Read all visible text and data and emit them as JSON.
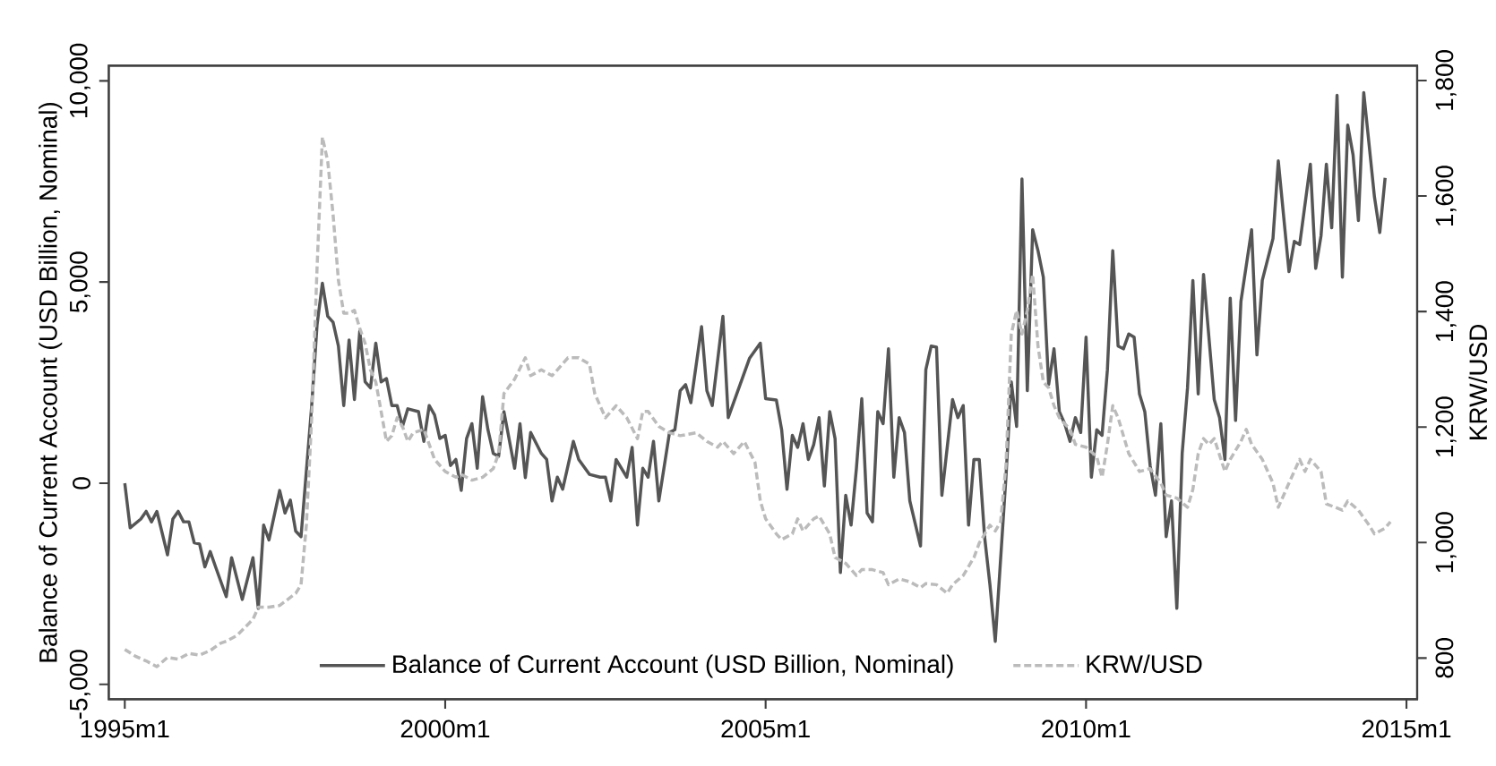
{
  "chart_data": {
    "type": "line",
    "ylabel": "Balance of Current Account (USD Billion, Nominal)",
    "y2label": "KRW/USD",
    "xlim": [
      "1994-10",
      "2015-03"
    ],
    "xticks": [
      {
        "value": "1995-01",
        "label": "1995m1"
      },
      {
        "value": "2000-01",
        "label": "2000m1"
      },
      {
        "value": "2005-01",
        "label": "2005m1"
      },
      {
        "value": "2010-01",
        "label": "2010m1"
      },
      {
        "value": "2015-01",
        "label": "2015m1"
      }
    ],
    "ylim": [
      -5369,
      10378
    ],
    "yticks": [
      {
        "value": -5000,
        "label": "-5,000"
      },
      0,
      {
        "value": 5000,
        "label": "5,000"
      },
      {
        "value": 10000,
        "label": "10,000"
      }
    ],
    "y2lim": [
      728.7,
      1825.7
    ],
    "y2ticks": [
      800,
      {
        "value": 1000,
        "label": "1,000"
      },
      {
        "value": 1200,
        "label": "1,200"
      },
      {
        "value": 1400,
        "label": "1,400"
      },
      {
        "value": 1600,
        "label": "1,600"
      },
      {
        "value": 1800,
        "label": "1,800"
      }
    ],
    "legend": "bottom",
    "marker": "none",
    "series": [
      {
        "name": "Balance of Current Account (USD Billion, Nominal)",
        "color": "#555555",
        "line_style": "solid",
        "x": [
          "1995-01",
          "1995-02",
          "1995-04",
          "1995-05",
          "1995-06",
          "1995-07",
          "1995-09",
          "1995-10",
          "1995-11",
          "1995-12",
          "1996-01",
          "1996-02",
          "1996-03",
          "1996-04",
          "1996-05",
          "1996-06",
          "1996-08",
          "1996-09",
          "1996-11",
          "1997-01",
          "1997-02",
          "1997-03",
          "1997-04",
          "1997-06",
          "1997-07",
          "1997-08",
          "1997-09",
          "1997-10",
          "1997-12",
          "1998-01",
          "1998-02",
          "1998-03",
          "1998-04",
          "1998-05",
          "1998-06",
          "1998-07",
          "1998-08",
          "1998-09",
          "1998-10",
          "1998-11",
          "1998-12",
          "1999-01",
          "1999-02",
          "1999-03",
          "1999-04",
          "1999-05",
          "1999-06",
          "1999-08",
          "1999-09",
          "1999-10",
          "1999-11",
          "1999-12",
          "2000-01",
          "2000-02",
          "2000-03",
          "2000-04",
          "2000-05",
          "2000-06",
          "2000-07",
          "2000-08",
          "2000-09",
          "2000-10",
          "2000-11",
          "2000-12",
          "2001-02",
          "2001-03",
          "2001-04",
          "2001-05",
          "2001-07",
          "2001-08",
          "2001-09",
          "2001-10",
          "2001-11",
          "2001-12",
          "2002-01",
          "2002-02",
          "2002-04",
          "2002-06",
          "2002-07",
          "2002-08",
          "2002-09",
          "2002-11",
          "2002-12",
          "2003-01",
          "2003-02",
          "2003-03",
          "2003-04",
          "2003-05",
          "2003-07",
          "2003-08",
          "2003-09",
          "2003-10",
          "2003-11",
          "2004-01",
          "2004-02",
          "2004-03",
          "2004-05",
          "2004-06",
          "2004-10",
          "2004-12",
          "2005-01",
          "2005-03",
          "2005-04",
          "2005-05",
          "2005-06",
          "2005-07",
          "2005-08",
          "2005-09",
          "2005-10",
          "2005-11",
          "2005-12",
          "2006-01",
          "2006-02",
          "2006-03",
          "2006-04",
          "2006-05",
          "2006-06",
          "2006-07",
          "2006-08",
          "2006-09",
          "2006-10",
          "2006-11",
          "2006-12",
          "2007-01",
          "2007-02",
          "2007-03",
          "2007-04",
          "2007-06",
          "2007-07",
          "2007-08",
          "2007-09",
          "2007-10",
          "2007-12",
          "2008-01",
          "2008-02",
          "2008-03",
          "2008-04",
          "2008-05",
          "2008-06",
          "2008-07",
          "2008-08",
          "2008-10",
          "2008-11",
          "2008-12",
          "2009-01",
          "2009-02",
          "2009-03",
          "2009-04",
          "2009-05",
          "2009-06",
          "2009-07",
          "2009-08",
          "2009-09",
          "2009-10",
          "2009-11",
          "2009-12",
          "2010-01",
          "2010-02",
          "2010-03",
          "2010-04",
          "2010-05",
          "2010-06",
          "2010-07",
          "2010-08",
          "2010-09",
          "2010-10",
          "2010-11",
          "2010-12",
          "2011-01",
          "2011-02",
          "2011-03",
          "2011-04",
          "2011-05",
          "2011-06",
          "2011-07",
          "2011-08",
          "2011-09",
          "2011-10",
          "2011-11",
          "2012-01",
          "2012-02",
          "2012-03",
          "2012-04",
          "2012-05",
          "2012-06",
          "2012-08",
          "2012-09",
          "2012-10",
          "2012-12",
          "2013-01",
          "2013-03",
          "2013-04",
          "2013-05",
          "2013-07",
          "2013-08",
          "2013-09",
          "2013-10",
          "2013-11",
          "2013-12",
          "2014-01",
          "2014-02",
          "2014-03",
          "2014-04",
          "2014-05",
          "2014-07",
          "2014-08",
          "2014-09"
        ],
        "values": [
          0,
          -1110,
          -890,
          -700,
          -960,
          -700,
          -1780,
          -890,
          -700,
          -960,
          -960,
          -1480,
          -1510,
          -2080,
          -1700,
          -2080,
          -2820,
          -1850,
          -2890,
          -1850,
          -3110,
          -1040,
          -1410,
          -180,
          -740,
          -420,
          -1190,
          -1330,
          1930,
          3930,
          4970,
          4150,
          4000,
          3410,
          1930,
          3560,
          2080,
          3780,
          2520,
          2370,
          3480,
          2520,
          2600,
          1930,
          1930,
          1410,
          1850,
          1780,
          1040,
          1930,
          1700,
          1110,
          1190,
          440,
          590,
          -180,
          1110,
          1480,
          370,
          2150,
          1330,
          740,
          670,
          1780,
          370,
          1480,
          140,
          1260,
          740,
          590,
          -440,
          150,
          -150,
          440,
          1040,
          590,
          220,
          150,
          150,
          -440,
          590,
          150,
          890,
          -1040,
          370,
          150,
          1040,
          -440,
          1260,
          1330,
          2300,
          2450,
          2000,
          3890,
          2300,
          1930,
          4150,
          1630,
          3110,
          3480,
          2100,
          2070,
          1330,
          -150,
          1190,
          890,
          1480,
          590,
          960,
          1630,
          -70,
          1780,
          1110,
          -2220,
          -300,
          -1040,
          370,
          2100,
          -740,
          -960,
          1780,
          1480,
          3340,
          150,
          1630,
          1260,
          -440,
          -1560,
          2820,
          3410,
          3380,
          -300,
          2080,
          1630,
          1930,
          -1040,
          590,
          590,
          -1330,
          -2520,
          -3930,
          150,
          2520,
          1410,
          7560,
          2300,
          6300,
          5780,
          5120,
          2450,
          3340,
          1780,
          1480,
          1040,
          1630,
          1260,
          3630,
          150,
          1330,
          1190,
          2820,
          5780,
          3410,
          3340,
          3710,
          3630,
          2220,
          1780,
          440,
          -300,
          1480,
          -1330,
          -440,
          -3110,
          740,
          2370,
          5040,
          2220,
          5190,
          2080,
          1630,
          590,
          4600,
          1560,
          4520,
          6300,
          3190,
          5040,
          6080,
          8010,
          5260,
          6010,
          5930,
          7930,
          5340,
          6150,
          7930,
          6350,
          9640,
          5120,
          8900,
          8160,
          6530,
          9710,
          7120,
          6230,
          7590
        ]
      },
      {
        "name": "KRW/USD",
        "color": "#bbbbbb",
        "line_style": "dashed",
        "axis": "y2",
        "x": [
          "1995-01",
          "1995-03",
          "1995-05",
          "1995-07",
          "1995-09",
          "1995-11",
          "1996-01",
          "1996-03",
          "1996-05",
          "1996-07",
          "1996-08",
          "1996-10",
          "1997-01",
          "1997-02",
          "1997-04",
          "1997-06",
          "1997-09",
          "1997-10",
          "1997-11",
          "1997-12",
          "1998-01",
          "1998-02",
          "1998-03",
          "1998-04",
          "1998-05",
          "1998-06",
          "1998-07",
          "1998-08",
          "1998-09",
          "1998-10",
          "1998-11",
          "1998-12",
          "1999-01",
          "1999-02",
          "1999-03",
          "1999-04",
          "1999-05",
          "1999-06",
          "1999-07",
          "1999-09",
          "1999-10",
          "1999-11",
          "2000-01",
          "2000-03",
          "2000-04",
          "2000-06",
          "2000-08",
          "2000-10",
          "2000-11",
          "2000-12",
          "2001-02",
          "2001-04",
          "2001-05",
          "2001-07",
          "2001-09",
          "2001-10",
          "2001-12",
          "2002-02",
          "2002-04",
          "2002-05",
          "2002-07",
          "2002-09",
          "2002-11",
          "2003-01",
          "2003-02",
          "2003-03",
          "2003-05",
          "2003-07",
          "2003-09",
          "2003-12",
          "2004-02",
          "2004-04",
          "2004-05",
          "2004-07",
          "2004-09",
          "2004-11",
          "2004-12",
          "2005-01",
          "2005-03",
          "2005-04",
          "2005-06",
          "2005-07",
          "2005-08",
          "2005-10",
          "2005-11",
          "2006-01",
          "2006-02",
          "2006-04",
          "2006-06",
          "2006-07",
          "2006-09",
          "2006-11",
          "2006-12",
          "2007-02",
          "2007-04",
          "2007-06",
          "2007-07",
          "2007-09",
          "2007-11",
          "2007-12",
          "2008-02",
          "2008-04",
          "2008-05",
          "2008-07",
          "2008-08",
          "2008-09",
          "2008-10",
          "2008-11",
          "2008-12",
          "2009-01",
          "2009-02",
          "2009-03",
          "2009-04",
          "2009-05",
          "2009-06",
          "2009-07",
          "2009-08",
          "2009-10",
          "2009-11",
          "2010-01",
          "2010-03",
          "2010-04",
          "2010-05",
          "2010-06",
          "2010-07",
          "2010-08",
          "2010-09",
          "2010-11",
          "2011-01",
          "2011-03",
          "2011-04",
          "2011-06",
          "2011-08",
          "2011-09",
          "2011-10",
          "2011-11",
          "2011-12",
          "2012-01",
          "2012-03",
          "2012-04",
          "2012-06",
          "2012-07",
          "2012-08",
          "2012-10",
          "2012-12",
          "2013-01",
          "2013-03",
          "2013-05",
          "2013-06",
          "2013-07",
          "2013-09",
          "2013-10",
          "2014-01",
          "2014-02",
          "2014-04",
          "2014-06",
          "2014-07",
          "2014-09",
          "2014-10"
        ],
        "values": [
          815,
          803,
          795,
          785,
          801,
          798,
          808,
          805,
          813,
          826,
          829,
          839,
          867,
          888,
          888,
          891,
          912,
          927,
          1030,
          1216,
          1475,
          1702,
          1660,
          1568,
          1454,
          1397,
          1397,
          1402,
          1371,
          1345,
          1299,
          1278,
          1227,
          1175,
          1185,
          1216,
          1201,
          1175,
          1190,
          1196,
          1170,
          1144,
          1123,
          1113,
          1118,
          1108,
          1113,
          1128,
          1154,
          1258,
          1283,
          1320,
          1289,
          1299,
          1289,
          1299,
          1320,
          1320,
          1309,
          1258,
          1216,
          1237,
          1216,
          1180,
          1227,
          1227,
          1201,
          1190,
          1185,
          1190,
          1175,
          1165,
          1175,
          1154,
          1175,
          1139,
          1072,
          1041,
          1015,
          1005,
          1015,
          1041,
          1020,
          1041,
          1046,
          1015,
          974,
          964,
          943,
          953,
          953,
          948,
          927,
          937,
          932,
          922,
          929,
          927,
          912,
          927,
          943,
          974,
          999,
          1030,
          1020,
          1036,
          1134,
          1361,
          1402,
          1361,
          1402,
          1464,
          1340,
          1278,
          1268,
          1237,
          1216,
          1196,
          1170,
          1165,
          1149,
          1113,
          1170,
          1237,
          1216,
          1185,
          1154,
          1123,
          1128,
          1103,
          1082,
          1077,
          1061,
          1092,
          1154,
          1180,
          1170,
          1180,
          1123,
          1144,
          1175,
          1196,
          1170,
          1144,
          1103,
          1061,
          1103,
          1144,
          1123,
          1144,
          1123,
          1067,
          1056,
          1072,
          1056,
          1030,
          1015,
          1025,
          1036
        ]
      }
    ]
  }
}
